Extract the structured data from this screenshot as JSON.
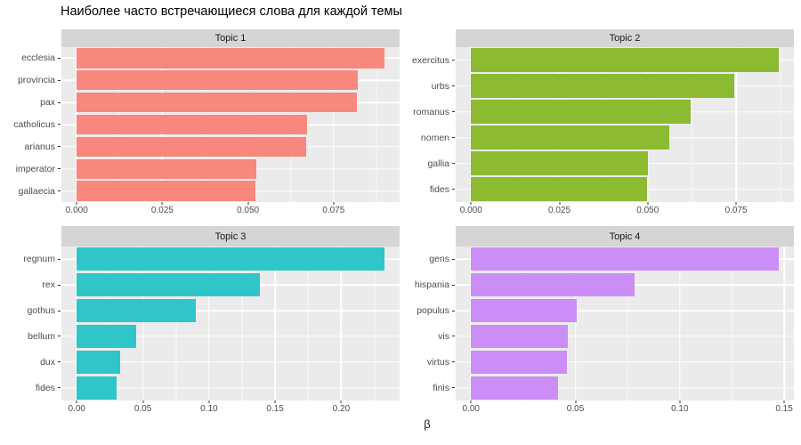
{
  "title": "Наиболее часто встречающиеся слова для каждой темы",
  "x_axis_label": "β",
  "style": {
    "panel_bg": "#EBEBEB",
    "strip_bg": "#D5D5D5",
    "grid_color": "#FFFFFF",
    "axis_text_color": "#4D4D4D",
    "tick_mark_color": "#333333"
  },
  "chart_data": [
    {
      "type": "bar",
      "orientation": "horizontal",
      "panel_title": "Topic 1",
      "categories": [
        "ecclesia",
        "provincia",
        "pax",
        "catholicus",
        "arianus",
        "imperator",
        "gallaecia"
      ],
      "values": [
        0.0898,
        0.082,
        0.0818,
        0.0673,
        0.0671,
        0.0525,
        0.0523
      ],
      "bar_color": "#F8877E",
      "ticks": [
        0,
        0.025,
        0.05,
        0.075
      ],
      "tick_labels": [
        "0.000",
        "0.025",
        "0.050",
        "0.075"
      ],
      "xlim": [
        0,
        0.0943
      ],
      "grid": true,
      "legend": "none"
    },
    {
      "type": "bar",
      "orientation": "horizontal",
      "panel_title": "Topic 2",
      "categories": [
        "exercitus",
        "urbs",
        "romanus",
        "nomen",
        "gallia",
        "fides"
      ],
      "values": [
        0.087,
        0.0745,
        0.0622,
        0.0561,
        0.05,
        0.0498
      ],
      "bar_color": "#8CBA30",
      "ticks": [
        0,
        0.025,
        0.05,
        0.075
      ],
      "tick_labels": [
        "0.000",
        "0.025",
        "0.050",
        "0.075"
      ],
      "xlim": [
        0,
        0.0914
      ],
      "grid": true,
      "legend": "none"
    },
    {
      "type": "bar",
      "orientation": "horizontal",
      "panel_title": "Topic 3",
      "categories": [
        "regnum",
        "rex",
        "gothus",
        "bellum",
        "dux",
        "fides"
      ],
      "values": [
        0.2325,
        0.1388,
        0.0901,
        0.045,
        0.0331,
        0.0304
      ],
      "bar_color": "#2FC5C9",
      "ticks": [
        0,
        0.05,
        0.1,
        0.15,
        0.2
      ],
      "tick_labels": [
        "0.00",
        "0.05",
        "0.10",
        "0.15",
        "0.20"
      ],
      "xlim": [
        0,
        0.2441
      ],
      "grid": true,
      "legend": "none"
    },
    {
      "type": "bar",
      "orientation": "horizontal",
      "panel_title": "Topic 4",
      "categories": [
        "gens",
        "hispania",
        "populus",
        "vis",
        "virtus",
        "finis"
      ],
      "values": [
        0.1473,
        0.0783,
        0.0506,
        0.0463,
        0.0461,
        0.0417
      ],
      "bar_color": "#CB8DF6",
      "ticks": [
        0,
        0.05,
        0.1,
        0.15
      ],
      "tick_labels": [
        "0.00",
        "0.05",
        "0.10",
        "0.15"
      ],
      "xlim": [
        0,
        0.1547
      ],
      "grid": true,
      "legend": "none"
    }
  ]
}
